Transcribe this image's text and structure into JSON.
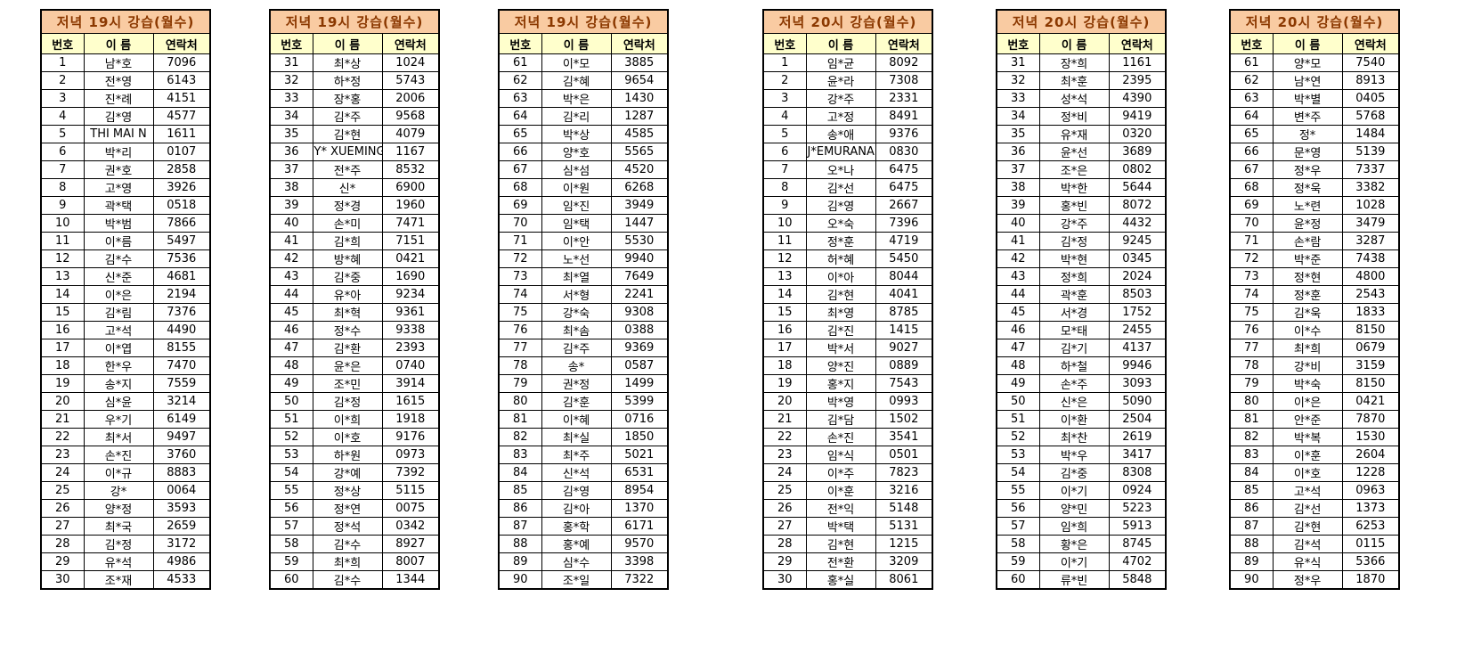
{
  "columns": [
    "번호",
    "이 름",
    "연락처"
  ],
  "colors": {
    "title_bg": "#F9CBA2",
    "title_text": "#8B3800",
    "header_bg": "#FFFFCC",
    "cell_bg": "#FFFFFF",
    "border": "#000000",
    "text": "#000000"
  },
  "tables": [
    {
      "title": "저녁 19시 강습(월수)",
      "rows": [
        [
          "1",
          "남*호",
          "7096"
        ],
        [
          "2",
          "전*영",
          "6143"
        ],
        [
          "3",
          "진*례",
          "4151"
        ],
        [
          "4",
          "김*영",
          "4577"
        ],
        [
          "5",
          "THI MAI N",
          "1611"
        ],
        [
          "6",
          "박*리",
          "0107"
        ],
        [
          "7",
          "권*호",
          "2858"
        ],
        [
          "8",
          "고*영",
          "3926"
        ],
        [
          "9",
          "곽*택",
          "0518"
        ],
        [
          "10",
          "박*범",
          "7866"
        ],
        [
          "11",
          "이*름",
          "5497"
        ],
        [
          "12",
          "김*수",
          "7536"
        ],
        [
          "13",
          "신*준",
          "4681"
        ],
        [
          "14",
          "이*은",
          "2194"
        ],
        [
          "15",
          "김*림",
          "7376"
        ],
        [
          "16",
          "고*석",
          "4490"
        ],
        [
          "17",
          "이*엽",
          "8155"
        ],
        [
          "18",
          "한*우",
          "7470"
        ],
        [
          "19",
          "송*지",
          "7559"
        ],
        [
          "20",
          "심*윤",
          "3214"
        ],
        [
          "21",
          "우*기",
          "6149"
        ],
        [
          "22",
          "최*서",
          "9497"
        ],
        [
          "23",
          "손*진",
          "3760"
        ],
        [
          "24",
          "이*규",
          "8883"
        ],
        [
          "25",
          "강*",
          "0064"
        ],
        [
          "26",
          "양*정",
          "3593"
        ],
        [
          "27",
          "최*국",
          "2659"
        ],
        [
          "28",
          "김*정",
          "3172"
        ],
        [
          "29",
          "유*석",
          "4986"
        ],
        [
          "30",
          "조*재",
          "4533"
        ]
      ]
    },
    {
      "title": "저녁 19시 강습(월수)",
      "rows": [
        [
          "31",
          "최*상",
          "1024"
        ],
        [
          "32",
          "하*정",
          "5743"
        ],
        [
          "33",
          "장*홍",
          "2006"
        ],
        [
          "34",
          "김*주",
          "9568"
        ],
        [
          "35",
          "김*현",
          "4079"
        ],
        [
          "36",
          "Y* XUEMING",
          "1167"
        ],
        [
          "37",
          "전*주",
          "8532"
        ],
        [
          "38",
          "신*",
          "6900"
        ],
        [
          "39",
          "정*경",
          "1960"
        ],
        [
          "40",
          "손*미",
          "7471"
        ],
        [
          "41",
          "김*희",
          "7151"
        ],
        [
          "42",
          "방*혜",
          "0421"
        ],
        [
          "43",
          "김*중",
          "1690"
        ],
        [
          "44",
          "유*아",
          "9234"
        ],
        [
          "45",
          "최*혁",
          "9361"
        ],
        [
          "46",
          "정*수",
          "9338"
        ],
        [
          "47",
          "김*환",
          "2393"
        ],
        [
          "48",
          "윤*은",
          "0740"
        ],
        [
          "49",
          "조*민",
          "3914"
        ],
        [
          "50",
          "김*정",
          "1615"
        ],
        [
          "51",
          "이*희",
          "1918"
        ],
        [
          "52",
          "이*호",
          "9176"
        ],
        [
          "53",
          "하*원",
          "0973"
        ],
        [
          "54",
          "강*예",
          "7392"
        ],
        [
          "55",
          "정*상",
          "5115"
        ],
        [
          "56",
          "정*연",
          "0075"
        ],
        [
          "57",
          "정*석",
          "0342"
        ],
        [
          "58",
          "김*수",
          "8927"
        ],
        [
          "59",
          "최*희",
          "8007"
        ],
        [
          "60",
          "김*수",
          "1344"
        ]
      ]
    },
    {
      "title": "저녁 19시 강습(월수)",
      "rows": [
        [
          "61",
          "이*모",
          "3885"
        ],
        [
          "62",
          "김*혜",
          "9654"
        ],
        [
          "63",
          "박*은",
          "1430"
        ],
        [
          "64",
          "김*리",
          "1287"
        ],
        [
          "65",
          "박*상",
          "4585"
        ],
        [
          "66",
          "양*호",
          "5565"
        ],
        [
          "67",
          "심*섬",
          "4520"
        ],
        [
          "68",
          "이*원",
          "6268"
        ],
        [
          "69",
          "임*진",
          "3949"
        ],
        [
          "70",
          "임*택",
          "1447"
        ],
        [
          "71",
          "이*안",
          "5530"
        ],
        [
          "72",
          "노*선",
          "9940"
        ],
        [
          "73",
          "최*열",
          "7649"
        ],
        [
          "74",
          "서*형",
          "2241"
        ],
        [
          "75",
          "강*숙",
          "9308"
        ],
        [
          "76",
          "최*솜",
          "0388"
        ],
        [
          "77",
          "김*주",
          "9369"
        ],
        [
          "78",
          "송*",
          "0587"
        ],
        [
          "79",
          "권*정",
          "1499"
        ],
        [
          "80",
          "김*훈",
          "5399"
        ],
        [
          "81",
          "이*혜",
          "0716"
        ],
        [
          "82",
          "최*실",
          "1850"
        ],
        [
          "83",
          "최*주",
          "5021"
        ],
        [
          "84",
          "신*석",
          "6531"
        ],
        [
          "85",
          "김*영",
          "8954"
        ],
        [
          "86",
          "김*아",
          "1370"
        ],
        [
          "87",
          "홍*학",
          "6171"
        ],
        [
          "88",
          "홍*예",
          "9570"
        ],
        [
          "89",
          "심*수",
          "3398"
        ],
        [
          "90",
          "조*일",
          "7322"
        ]
      ]
    },
    {
      "title": "저녁 20시 강습(월수)",
      "rows": [
        [
          "1",
          "임*균",
          "8092"
        ],
        [
          "2",
          "윤*라",
          "7308"
        ],
        [
          "3",
          "강*주",
          "2331"
        ],
        [
          "4",
          "고*정",
          "8491"
        ],
        [
          "5",
          "송*애",
          "9376"
        ],
        [
          "6",
          "J*EMURANANA",
          "0830"
        ],
        [
          "7",
          "오*나",
          "6475"
        ],
        [
          "8",
          "김*선",
          "6475"
        ],
        [
          "9",
          "김*영",
          "2667"
        ],
        [
          "10",
          "오*숙",
          "7396"
        ],
        [
          "11",
          "정*훈",
          "4719"
        ],
        [
          "12",
          "허*혜",
          "5450"
        ],
        [
          "13",
          "이*아",
          "8044"
        ],
        [
          "14",
          "김*현",
          "4041"
        ],
        [
          "15",
          "최*영",
          "8785"
        ],
        [
          "16",
          "김*진",
          "1415"
        ],
        [
          "17",
          "박*서",
          "9027"
        ],
        [
          "18",
          "양*진",
          "0889"
        ],
        [
          "19",
          "홍*지",
          "7543"
        ],
        [
          "20",
          "박*영",
          "0993"
        ],
        [
          "21",
          "김*담",
          "1502"
        ],
        [
          "22",
          "손*진",
          "3541"
        ],
        [
          "23",
          "임*식",
          "0501"
        ],
        [
          "24",
          "이*주",
          "7823"
        ],
        [
          "25",
          "이*훈",
          "3216"
        ],
        [
          "26",
          "전*익",
          "5148"
        ],
        [
          "27",
          "박*택",
          "5131"
        ],
        [
          "28",
          "김*현",
          "1215"
        ],
        [
          "29",
          "전*환",
          "3209"
        ],
        [
          "30",
          "홍*실",
          "8061"
        ]
      ]
    },
    {
      "title": "저녁 20시 강습(월수)",
      "rows": [
        [
          "31",
          "장*희",
          "1161"
        ],
        [
          "32",
          "최*훈",
          "2395"
        ],
        [
          "33",
          "성*석",
          "4390"
        ],
        [
          "34",
          "정*비",
          "9419"
        ],
        [
          "35",
          "유*재",
          "0320"
        ],
        [
          "36",
          "윤*선",
          "3689"
        ],
        [
          "37",
          "조*은",
          "0802"
        ],
        [
          "38",
          "박*한",
          "5644"
        ],
        [
          "39",
          "홍*빈",
          "8072"
        ],
        [
          "40",
          "강*주",
          "4432"
        ],
        [
          "41",
          "김*정",
          "9245"
        ],
        [
          "42",
          "박*현",
          "0345"
        ],
        [
          "43",
          "정*희",
          "2024"
        ],
        [
          "44",
          "곽*훈",
          "8503"
        ],
        [
          "45",
          "서*경",
          "1752"
        ],
        [
          "46",
          "모*태",
          "2455"
        ],
        [
          "47",
          "김*기",
          "4137"
        ],
        [
          "48",
          "하*철",
          "9946"
        ],
        [
          "49",
          "손*주",
          "3093"
        ],
        [
          "50",
          "신*은",
          "5090"
        ],
        [
          "51",
          "이*환",
          "2504"
        ],
        [
          "52",
          "최*찬",
          "2619"
        ],
        [
          "53",
          "박*우",
          "3417"
        ],
        [
          "54",
          "김*중",
          "8308"
        ],
        [
          "55",
          "이*기",
          "0924"
        ],
        [
          "56",
          "양*민",
          "5223"
        ],
        [
          "57",
          "임*희",
          "5913"
        ],
        [
          "58",
          "황*은",
          "8745"
        ],
        [
          "59",
          "이*기",
          "4702"
        ],
        [
          "60",
          "류*빈",
          "5848"
        ]
      ]
    },
    {
      "title": "저녁 20시 강습(월수)",
      "rows": [
        [
          "61",
          "양*모",
          "7540"
        ],
        [
          "62",
          "남*연",
          "8913"
        ],
        [
          "63",
          "박*별",
          "0405"
        ],
        [
          "64",
          "변*주",
          "5768"
        ],
        [
          "65",
          "정*",
          "1484"
        ],
        [
          "66",
          "문*영",
          "5139"
        ],
        [
          "67",
          "정*우",
          "7337"
        ],
        [
          "68",
          "정*욱",
          "3382"
        ],
        [
          "69",
          "노*련",
          "1028"
        ],
        [
          "70",
          "윤*정",
          "3479"
        ],
        [
          "71",
          "손*람",
          "3287"
        ],
        [
          "72",
          "박*준",
          "7438"
        ],
        [
          "73",
          "정*현",
          "4800"
        ],
        [
          "74",
          "정*훈",
          "2543"
        ],
        [
          "75",
          "김*욱",
          "1833"
        ],
        [
          "76",
          "이*수",
          "8150"
        ],
        [
          "77",
          "최*희",
          "0679"
        ],
        [
          "78",
          "강*비",
          "3159"
        ],
        [
          "79",
          "박*숙",
          "8150"
        ],
        [
          "80",
          "이*은",
          "0421"
        ],
        [
          "81",
          "안*준",
          "7870"
        ],
        [
          "82",
          "박*복",
          "1530"
        ],
        [
          "83",
          "이*훈",
          "2604"
        ],
        [
          "84",
          "이*호",
          "1228"
        ],
        [
          "85",
          "고*석",
          "0963"
        ],
        [
          "86",
          "김*선",
          "1373"
        ],
        [
          "87",
          "김*현",
          "6253"
        ],
        [
          "88",
          "김*석",
          "0115"
        ],
        [
          "89",
          "유*식",
          "5366"
        ],
        [
          "90",
          "정*우",
          "1870"
        ]
      ]
    }
  ]
}
